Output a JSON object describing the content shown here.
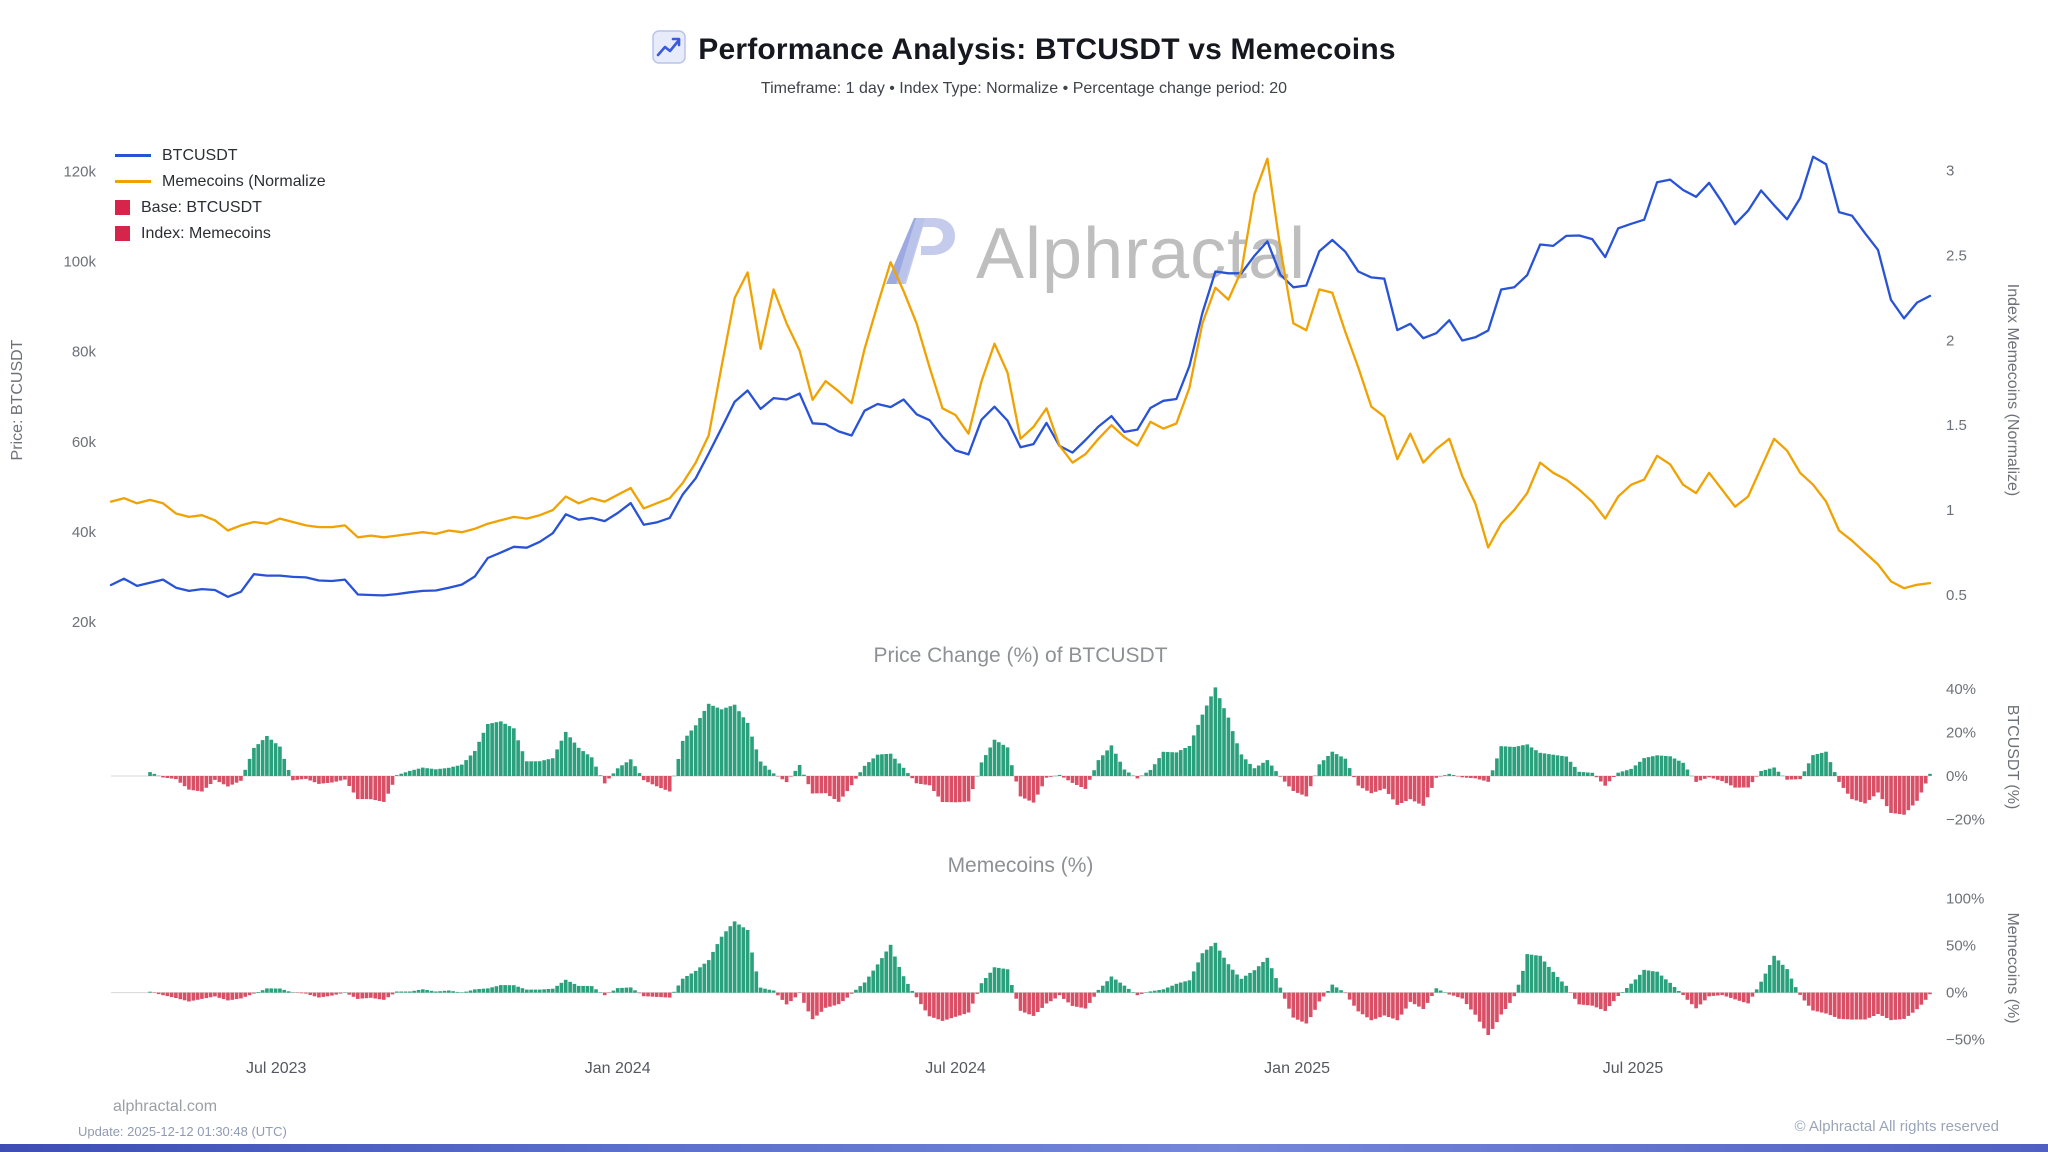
{
  "header": {
    "title": "Performance Analysis: BTCUSDT vs Memecoins",
    "title_icon": "chart-increasing",
    "subtitle": "Timeframe: 1 day  •  Index Type: Normalize  •  Percentage change period: 20"
  },
  "watermark": {
    "logo": "AP",
    "text": "Alphractal"
  },
  "legend": {
    "items": [
      {
        "type": "line",
        "color": "#2953d6",
        "label": "BTCUSDT"
      },
      {
        "type": "line",
        "color": "#f0a202",
        "label": "Memecoins (Normalize"
      },
      {
        "type": "square",
        "color": "#d7244a",
        "label": "Base: BTCUSDT"
      },
      {
        "type": "square",
        "color": "#d7244a",
        "label": "Index: Memecoins"
      }
    ]
  },
  "footer": {
    "site": "alphractal.com",
    "update": "Update: 2025-12-12 01:30:48 (UTC)",
    "copyright": "© Alphractal All rights reserved"
  },
  "chart_data": {
    "type": "line+bar",
    "x_axis": {
      "start_date": "2023-04-03",
      "step_days": 7,
      "points": 141,
      "ticks": [
        {
          "date": "2023-07-01",
          "label": "Jul 2023"
        },
        {
          "date": "2024-01-01",
          "label": "Jan 2024"
        },
        {
          "date": "2024-07-01",
          "label": "Jul 2024"
        },
        {
          "date": "2025-01-01",
          "label": "Jan 2025"
        },
        {
          "date": "2025-07-01",
          "label": "Jul 2025"
        }
      ]
    },
    "main": {
      "left_axis": {
        "title": "Price: BTCUSDT",
        "unit": "thousand USD",
        "domain": [
          16,
          127
        ],
        "ticks": [
          {
            "v": 120,
            "label": "120k"
          },
          {
            "v": 100,
            "label": "100k"
          },
          {
            "v": 80,
            "label": "80k"
          },
          {
            "v": 60,
            "label": "60k"
          },
          {
            "v": 40,
            "label": "40k"
          },
          {
            "v": 20,
            "label": "20k"
          }
        ]
      },
      "right_axis": {
        "title": "Index Memecoins (Normalize)",
        "domain": [
          0.235,
          3.18
        ],
        "ticks": [
          {
            "v": 3,
            "label": "3"
          },
          {
            "v": 2.5,
            "label": "2.5"
          },
          {
            "v": 2,
            "label": "2"
          },
          {
            "v": 1.5,
            "label": "1.5"
          },
          {
            "v": 1,
            "label": "1"
          },
          {
            "v": 0.5,
            "label": "0.5"
          }
        ]
      },
      "series": [
        {
          "name": "BTCUSDT",
          "axis": "left",
          "color": "#2953d6",
          "values": [
            28.2,
            29.6,
            28.0,
            28.7,
            29.4,
            27.6,
            26.9,
            27.3,
            27.1,
            25.6,
            26.7,
            30.6,
            30.3,
            30.3,
            30.0,
            29.9,
            29.2,
            29.1,
            29.4,
            26.1,
            26.0,
            25.9,
            26.2,
            26.6,
            26.9,
            27.0,
            27.6,
            28.3,
            30.1,
            34.2,
            35.4,
            36.7,
            36.5,
            37.8,
            39.7,
            43.9,
            42.7,
            43.1,
            42.4,
            44.2,
            46.4,
            41.6,
            42.1,
            43.1,
            48.3,
            51.9,
            57.4,
            63.1,
            68.9,
            71.4,
            67.3,
            69.7,
            69.4,
            70.7,
            64.1,
            63.9,
            62.3,
            61.4,
            66.9,
            68.4,
            67.7,
            69.4,
            66.1,
            64.8,
            61.1,
            58.1,
            57.2,
            64.9,
            67.8,
            64.7,
            58.8,
            59.5,
            64.2,
            59.1,
            57.6,
            60.4,
            63.4,
            65.7,
            62.2,
            62.7,
            67.5,
            69.1,
            69.5,
            76.8,
            88.6,
            97.8,
            97.4,
            97.4,
            101.3,
            104.5,
            97.1,
            94.3,
            94.7,
            102.3,
            104.8,
            102.2,
            97.8,
            96.5,
            96.2,
            84.8,
            86.2,
            83.0,
            84.1,
            87.0,
            82.5,
            83.2,
            84.7,
            93.8,
            94.3,
            97.0,
            103.8,
            103.5,
            105.7,
            105.8,
            105.0,
            101.0,
            107.4,
            108.4,
            109.3,
            117.6,
            118.2,
            115.9,
            114.4,
            117.5,
            113.2,
            108.3,
            111.3,
            115.8,
            112.5,
            109.4,
            114.1,
            123.3,
            121.6,
            111.0,
            110.2,
            106.3,
            102.6,
            91.5,
            87.4,
            90.9,
            92.4
          ]
        },
        {
          "name": "Memecoins (Normalize)",
          "axis": "right",
          "color": "#f0a202",
          "values": [
            1.05,
            1.07,
            1.04,
            1.06,
            1.04,
            0.98,
            0.96,
            0.97,
            0.94,
            0.88,
            0.91,
            0.93,
            0.92,
            0.95,
            0.93,
            0.91,
            0.9,
            0.9,
            0.91,
            0.84,
            0.85,
            0.84,
            0.85,
            0.86,
            0.87,
            0.86,
            0.88,
            0.87,
            0.89,
            0.92,
            0.94,
            0.96,
            0.95,
            0.97,
            1.0,
            1.08,
            1.04,
            1.07,
            1.05,
            1.09,
            1.13,
            1.01,
            1.04,
            1.07,
            1.16,
            1.28,
            1.44,
            1.85,
            2.25,
            2.4,
            1.95,
            2.3,
            2.1,
            1.94,
            1.65,
            1.76,
            1.7,
            1.63,
            1.95,
            2.21,
            2.46,
            2.29,
            2.1,
            1.84,
            1.6,
            1.56,
            1.45,
            1.76,
            1.98,
            1.81,
            1.42,
            1.49,
            1.6,
            1.38,
            1.28,
            1.33,
            1.42,
            1.5,
            1.43,
            1.38,
            1.52,
            1.48,
            1.51,
            1.72,
            2.1,
            2.31,
            2.24,
            2.41,
            2.86,
            3.07,
            2.54,
            2.1,
            2.06,
            2.3,
            2.28,
            2.05,
            1.84,
            1.61,
            1.55,
            1.3,
            1.45,
            1.28,
            1.36,
            1.42,
            1.2,
            1.04,
            0.78,
            0.92,
            1.0,
            1.1,
            1.28,
            1.22,
            1.18,
            1.12,
            1.05,
            0.95,
            1.08,
            1.15,
            1.18,
            1.32,
            1.27,
            1.15,
            1.1,
            1.22,
            1.12,
            1.02,
            1.08,
            1.25,
            1.42,
            1.35,
            1.22,
            1.15,
            1.05,
            0.88,
            0.82,
            0.75,
            0.68,
            0.58,
            0.54,
            0.56,
            0.57
          ]
        }
      ]
    },
    "panels": [
      {
        "title": "Price Change (%) of BTCUSDT",
        "axis_title": "BTCUSDT (%)",
        "type": "bar",
        "source": 0,
        "period_days": 20,
        "derived": "percentage change of BTCUSDT over period",
        "domain": [
          -27.6,
          47.8
        ],
        "ticks": [
          {
            "v": 40,
            "label": "40%"
          },
          {
            "v": 20,
            "label": "20%"
          },
          {
            "v": 0,
            "label": "0%"
          },
          {
            "v": -20,
            "label": "−20%"
          }
        ],
        "pos_color": "#2aa17c",
        "neg_color": "#d94f66"
      },
      {
        "title": "Memecoins (%)",
        "axis_title": "Memecoins (%)",
        "type": "bar",
        "source": 1,
        "period_days": 20,
        "derived": "percentage change of Memecoins index over period",
        "domain": [
          -61,
          113.4
        ],
        "ticks": [
          {
            "v": 100,
            "label": "100%"
          },
          {
            "v": 50,
            "label": "50%"
          },
          {
            "v": 0,
            "label": "0%"
          },
          {
            "v": -50,
            "label": "−50%"
          }
        ],
        "pos_color": "#2aa17c",
        "neg_color": "#d94f66"
      }
    ]
  }
}
